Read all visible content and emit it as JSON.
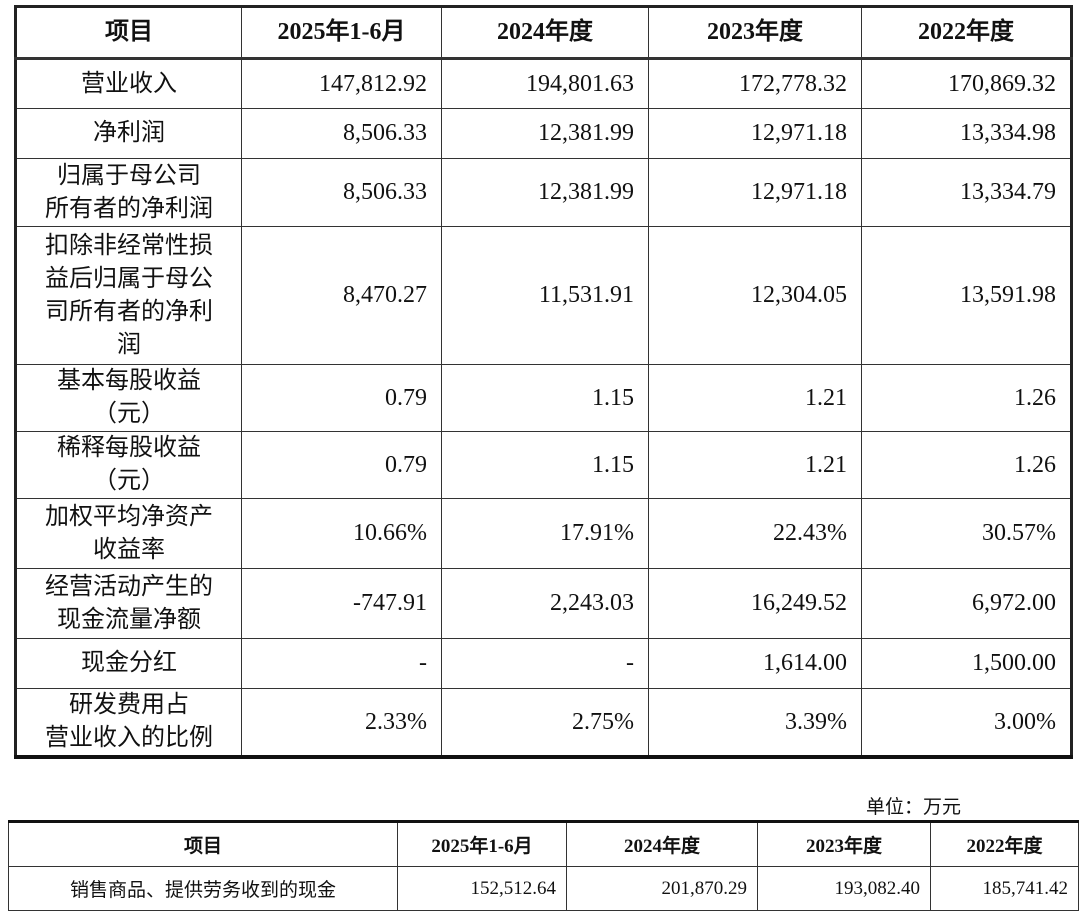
{
  "table1": {
    "headers": [
      "项目",
      "2025年1-6月",
      "2024年度",
      "2023年度",
      "2022年度"
    ],
    "rows": [
      {
        "label": "营业收入",
        "values": [
          "147,812.92",
          "194,801.63",
          "172,778.32",
          "170,869.32"
        ]
      },
      {
        "label": "净利润",
        "values": [
          "8,506.33",
          "12,381.99",
          "12,971.18",
          "13,334.98"
        ]
      },
      {
        "label": "归属于母公司\n所有者的净利润",
        "values": [
          "8,506.33",
          "12,381.99",
          "12,971.18",
          "13,334.79"
        ]
      },
      {
        "label": "扣除非经常性损\n益后归属于母公\n司所有者的净利\n润",
        "values": [
          "8,470.27",
          "11,531.91",
          "12,304.05",
          "13,591.98"
        ]
      },
      {
        "label": "基本每股收益\n（元）",
        "values": [
          "0.79",
          "1.15",
          "1.21",
          "1.26"
        ]
      },
      {
        "label": "稀释每股收益\n（元）",
        "values": [
          "0.79",
          "1.15",
          "1.21",
          "1.26"
        ]
      },
      {
        "label": "加权平均净资产\n收益率",
        "values": [
          "10.66%",
          "17.91%",
          "22.43%",
          "30.57%"
        ]
      },
      {
        "label": "经营活动产生的\n现金流量净额",
        "values": [
          "-747.91",
          "2,243.03",
          "16,249.52",
          "6,972.00"
        ]
      },
      {
        "label": "现金分红",
        "values": [
          "-",
          "-",
          "1,614.00",
          "1,500.00"
        ]
      },
      {
        "label": "研发费用占\n营业收入的比例",
        "values": [
          "2.33%",
          "2.75%",
          "3.39%",
          "3.00%"
        ]
      }
    ]
  },
  "unit_note": "单位：万元",
  "table2": {
    "headers": [
      "项目",
      "2025年1-6月",
      "2024年度",
      "2023年度",
      "2022年度"
    ],
    "rows": [
      {
        "label": "销售商品、提供劳务收到的现金",
        "values": [
          "152,512.64",
          "201,870.29",
          "193,082.40",
          "185,741.42"
        ]
      }
    ]
  }
}
